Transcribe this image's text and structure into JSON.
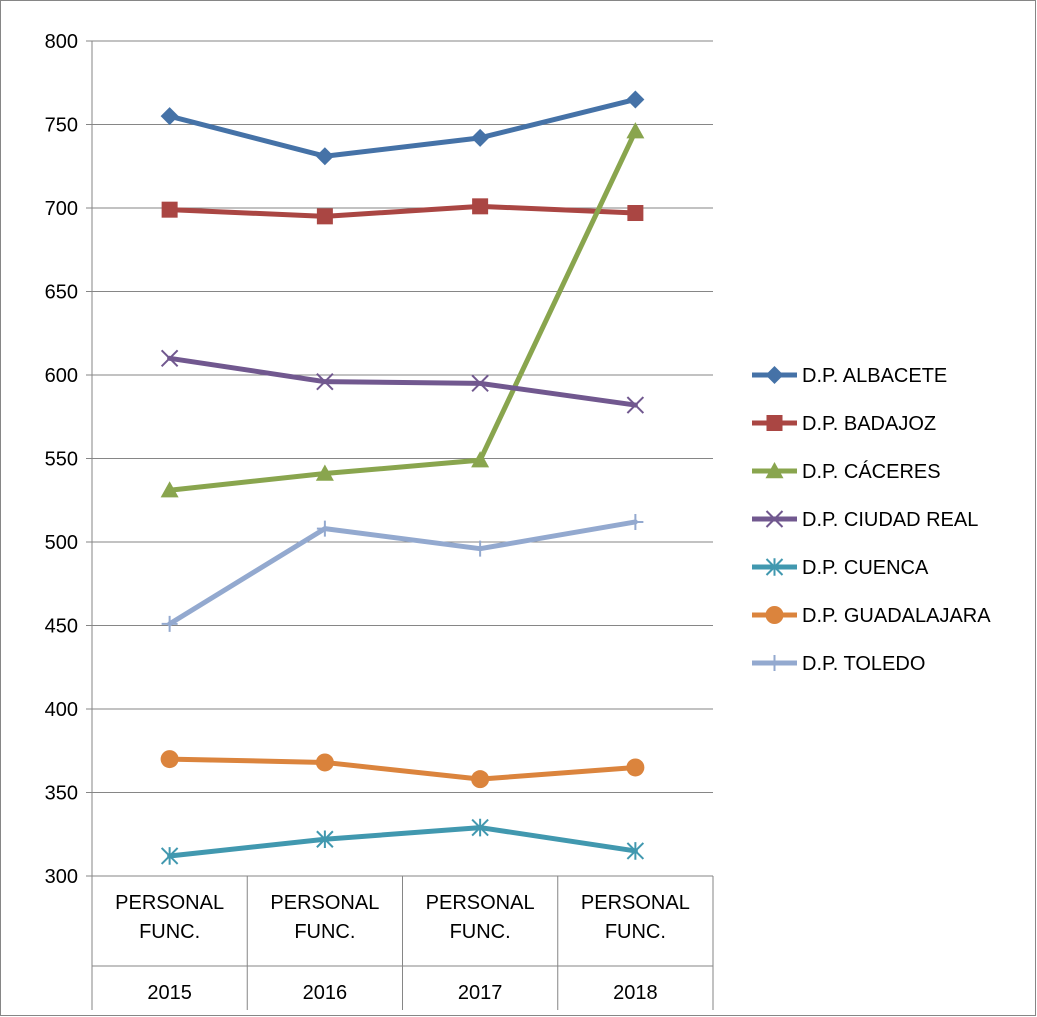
{
  "chart_data": {
    "type": "line",
    "title": "",
    "xlabel": "",
    "ylabel": "",
    "ylim": [
      300,
      800
    ],
    "yticks": [
      300,
      350,
      400,
      450,
      500,
      550,
      600,
      650,
      700,
      750,
      800
    ],
    "grid": "horizontal",
    "legend_position": "right",
    "categories": [
      {
        "label": [
          "PERSONAL",
          "FUNC."
        ],
        "year": "2015"
      },
      {
        "label": [
          "PERSONAL",
          "FUNC."
        ],
        "year": "2016"
      },
      {
        "label": [
          "PERSONAL",
          "FUNC."
        ],
        "year": "2017"
      },
      {
        "label": [
          "PERSONAL",
          "FUNC."
        ],
        "year": "2018"
      }
    ],
    "series": [
      {
        "name": "D.P. ALBACETE",
        "color": "#4572A7",
        "marker": "diamond",
        "values": [
          755,
          731,
          742,
          765
        ]
      },
      {
        "name": "D.P. BADAJOZ",
        "color": "#AA4643",
        "marker": "square",
        "values": [
          699,
          695,
          701,
          697
        ]
      },
      {
        "name": "D.P. CÁCERES",
        "color": "#89A54E",
        "marker": "triangle",
        "values": [
          531,
          541,
          549,
          746
        ]
      },
      {
        "name": "D.P. CIUDAD REAL",
        "color": "#71588F",
        "marker": "x",
        "values": [
          610,
          596,
          595,
          582
        ]
      },
      {
        "name": "D.P. CUENCA",
        "color": "#4198AF",
        "marker": "star",
        "values": [
          312,
          322,
          329,
          315
        ]
      },
      {
        "name": "D.P. GUADALAJARA",
        "color": "#DB843D",
        "marker": "circle",
        "values": [
          370,
          368,
          358,
          365
        ]
      },
      {
        "name": "D.P. TOLEDO",
        "color": "#93A9CF",
        "marker": "plus",
        "values": [
          451,
          508,
          496,
          512
        ]
      }
    ]
  }
}
